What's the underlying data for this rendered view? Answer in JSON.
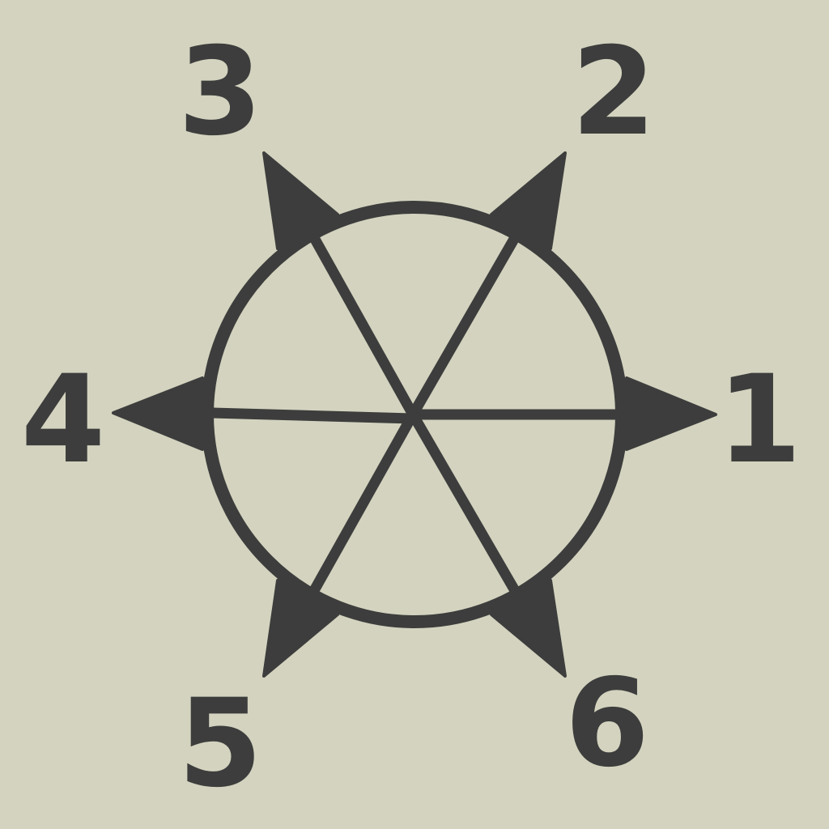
{
  "colors": {
    "background": "#d3d3bf",
    "ink": "#3d3d3d"
  },
  "labels": [
    {
      "id": "1",
      "text": "1",
      "angle_deg": 0
    },
    {
      "id": "2",
      "text": "2",
      "angle_deg": 60
    },
    {
      "id": "3",
      "text": "3",
      "angle_deg": 120
    },
    {
      "id": "4",
      "text": "4",
      "angle_deg": 180
    },
    {
      "id": "5",
      "text": "5",
      "angle_deg": 240
    },
    {
      "id": "6",
      "text": "6",
      "angle_deg": 300
    }
  ]
}
